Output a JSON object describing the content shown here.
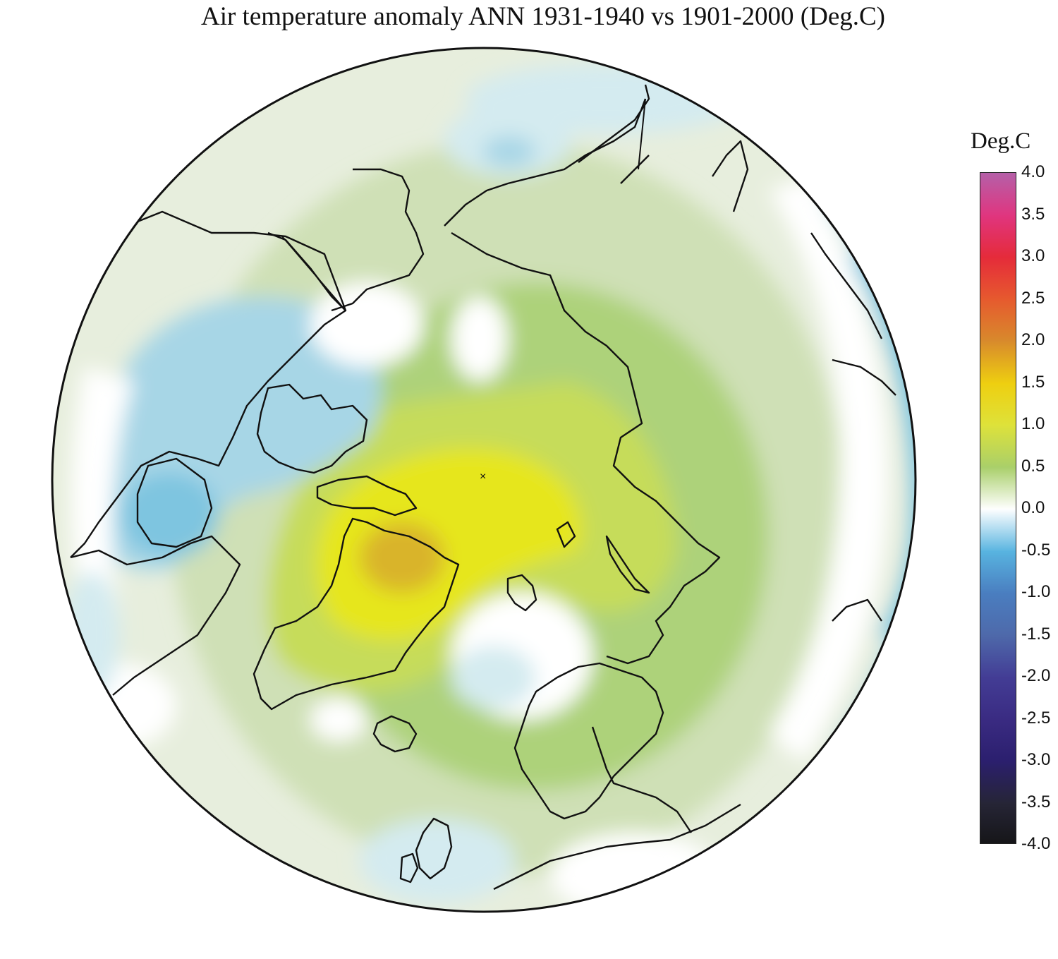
{
  "title": "Air temperature anomaly ANN 1931-1940 vs 1901-2000 (Deg.C)",
  "legend": {
    "title": "Deg.C",
    "ticks": [
      "4.0",
      "3.5",
      "3.0",
      "2.5",
      "2.0",
      "1.5",
      "1.0",
      "0.5",
      "0.0",
      "-0.5",
      "-1.0",
      "-1.5",
      "-2.0",
      "-2.5",
      "-3.0",
      "-3.5",
      "-4.0"
    ],
    "range": [
      -4.0,
      4.0
    ],
    "colors": {
      "4.0": "#b560a8",
      "3.5": "#e0357f",
      "3.0": "#e52b3a",
      "2.5": "#e65a2e",
      "2.0": "#d88a2c",
      "1.5": "#eecf10",
      "1.0": "#dee23a",
      "0.5": "#a9cf6a",
      "0.0": "#ffffff",
      "-0.5": "#58b4e0",
      "-1.0": "#4a7ec0",
      "-1.5": "#4e69aa",
      "-2.0": "#433d95",
      "-2.5": "#3a2b82",
      "-3.0": "#2b1f6e",
      "-3.5": "#262536",
      "-4.0": "#151517"
    }
  },
  "map": {
    "projection": "north polar stereographic",
    "anomaly_colors": {
      "cold_strong": "#7ec5e0",
      "cold": "#a7d6e6",
      "cold_weak": "#d4ebf0",
      "neutral": "#ffffff",
      "warm_weak": "#e7eedd",
      "warm_light": "#cfe0b6",
      "warm": "#add27a",
      "warm_moderate": "#c6dc5a",
      "warm_strong": "#e6e61e",
      "warm_peak": "#d9b42c"
    }
  }
}
